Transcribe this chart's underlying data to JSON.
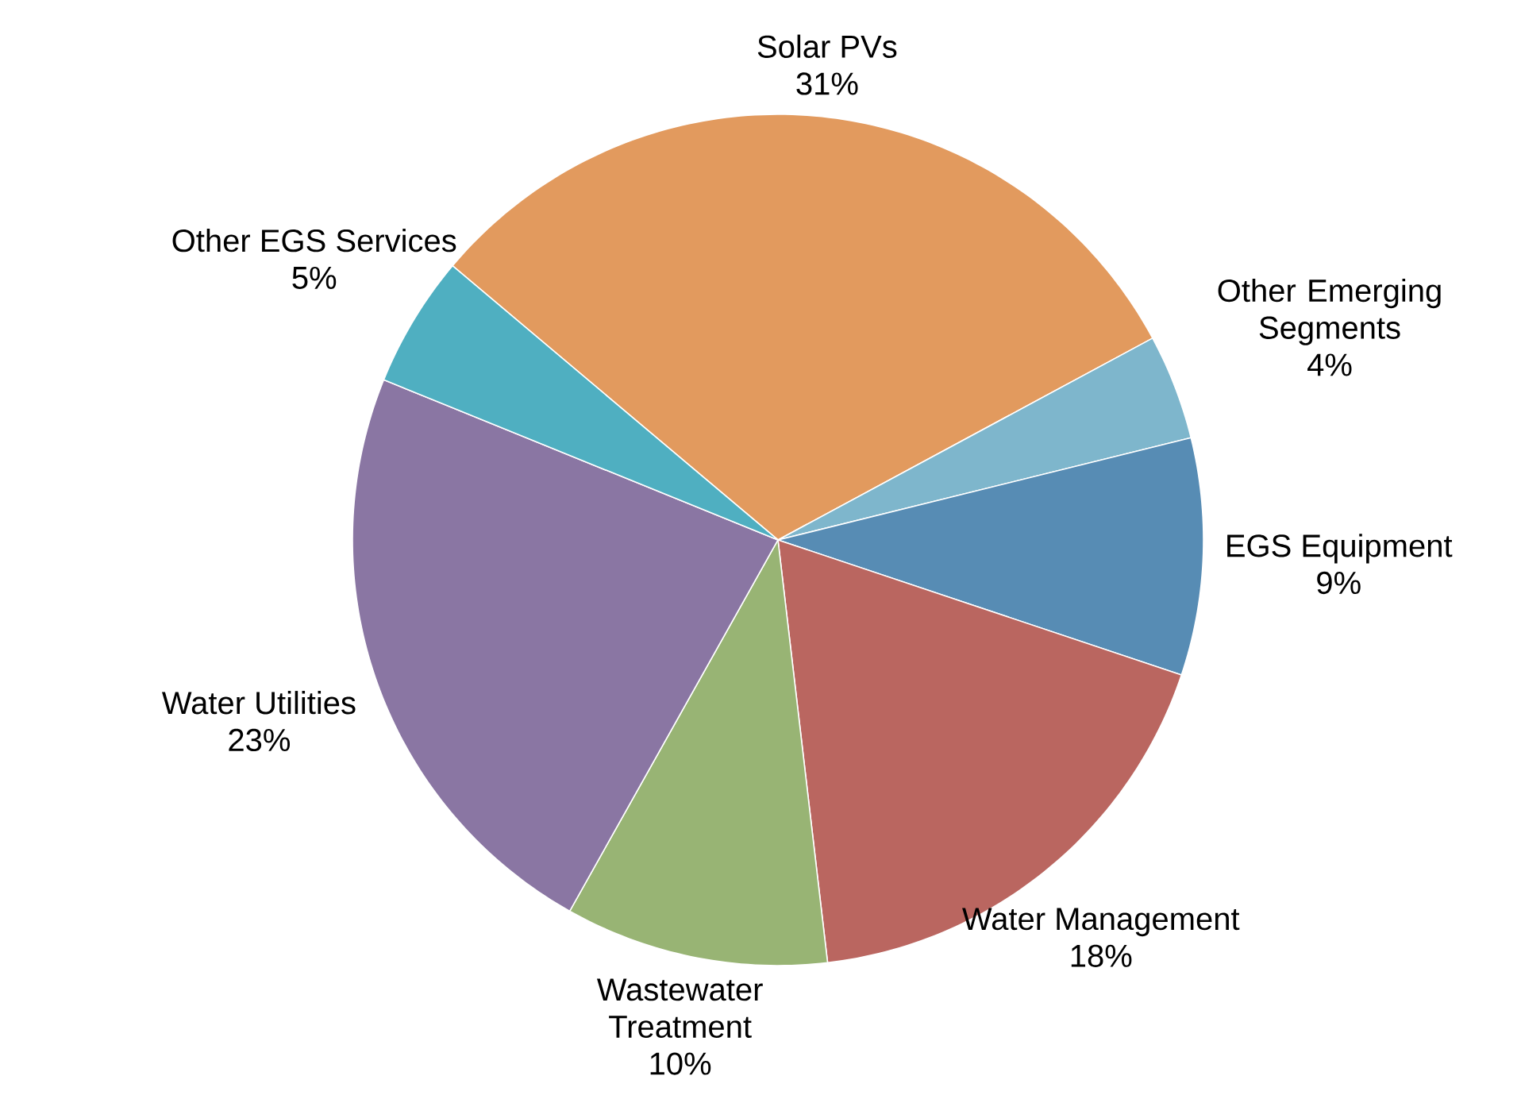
{
  "chart_data": {
    "type": "pie",
    "categories": [
      "Solar PVs",
      "Other Emerging Segments",
      "EGS Equipment",
      "Water Management",
      "Wastewater Treatment",
      "Water Utilities",
      "Other EGS Services"
    ],
    "values": [
      31,
      4,
      9,
      18,
      10,
      23,
      5
    ],
    "value_labels": [
      "31%",
      "4%",
      "9%",
      "18%",
      "10%",
      "23%",
      "5%"
    ],
    "colors": [
      "#e29a5e",
      "#7eb6cc",
      "#578cb4",
      "#ba6660",
      "#98b474",
      "#8a76a3",
      "#4fafc1"
    ]
  }
}
